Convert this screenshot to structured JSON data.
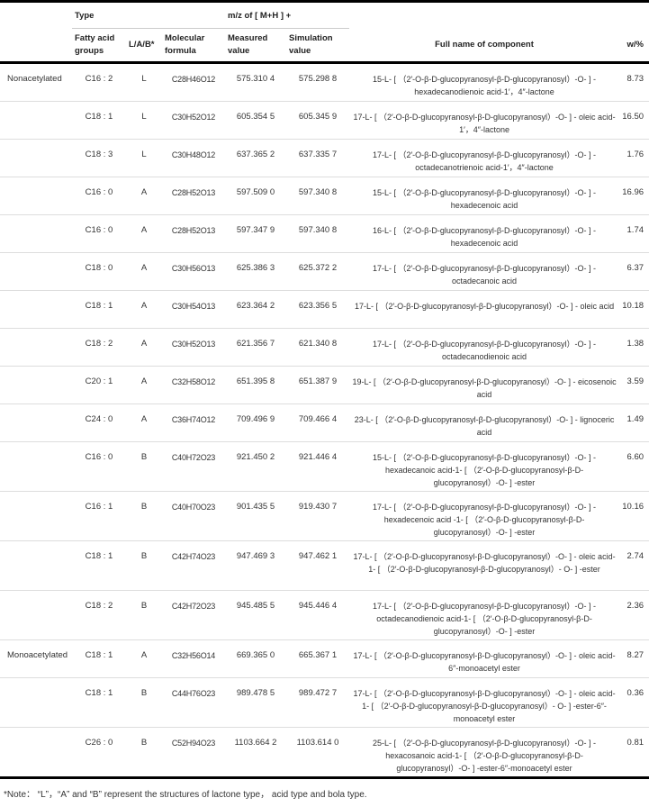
{
  "header": {
    "type": "Type",
    "mz": "m/z of [ M+H ] +",
    "fatty_acid_groups": "Fatty acid groups",
    "lab": "L/A/B*",
    "molecular_formula": "Molecular formula",
    "measured": "Measured value",
    "simulation": "Simulation value",
    "full_name": "Full name of component",
    "w": "w/%"
  },
  "rows": [
    {
      "group": "Nonacetylated",
      "fa": "C16 : 2",
      "lab": "L",
      "formula": "C28H46O12",
      "measured": "575.310 4",
      "sim": "575.298 8",
      "name": "15-L- [ （2′-O-β-D-glucopyranosyl-β-D-glucopyranosyl）-O- ] - hexadecanodienoic acid-1′，4″-lactone",
      "w": "8.73"
    },
    {
      "group": "",
      "fa": "C18 : 1",
      "lab": "L",
      "formula": "C30H52O12",
      "measured": "605.354 5",
      "sim": "605.345 9",
      "name": "17-L- [ （2′-O-β-D-glucopyranosyl-β-D-glucopyranosyl）-O- ] - oleic acid-1′，4″-lactone",
      "w": "16.50"
    },
    {
      "group": "",
      "fa": "C18 : 3",
      "lab": "L",
      "formula": "C30H48O12",
      "measured": "637.365 2",
      "sim": "637.335 7",
      "name": "17-L- [ （2′-O-β-D-glucopyranosyl-β-D-glucopyranosyl）-O- ] - octadecanotrienoic acid-1′，4″-lactone",
      "w": "1.76"
    },
    {
      "group": "",
      "fa": "C16 : 0",
      "lab": "A",
      "formula": "C28H52O13",
      "measured": "597.509 0",
      "sim": "597.340 8",
      "name": "15-L- [ （2′-O-β-D-glucopyranosyl-β-D-glucopyranosyl）-O- ] - hexadecenoic acid",
      "w": "16.96"
    },
    {
      "group": "",
      "fa": "C16 : 0",
      "lab": "A",
      "formula": "C28H52O13",
      "measured": "597.347 9",
      "sim": "597.340 8",
      "name": "16-L- [ （2′-O-β-D-glucopyranosyl-β-D-glucopyranosyl）-O- ] - hexadecenoic acid",
      "w": "1.74"
    },
    {
      "group": "",
      "fa": "C18 : 0",
      "lab": "A",
      "formula": "C30H56O13",
      "measured": "625.386 3",
      "sim": "625.372 2",
      "name": "17-L- [ （2′-O-β-D-glucopyranosyl-β-D-glucopyranosyl）-O- ] - octadecanoic acid",
      "w": "6.37"
    },
    {
      "group": "",
      "fa": "C18 : 1",
      "lab": "A",
      "formula": "C30H54O13",
      "measured": "623.364 2",
      "sim": "623.356 5",
      "name": "17-L- [ （2′-O-β-D-glucopyranosyl-β-D-glucopyranosyl）-O- ] - oleic acid",
      "w": "10.18"
    },
    {
      "group": "",
      "fa": "C18 : 2",
      "lab": "A",
      "formula": "C30H52O13",
      "measured": "621.356 7",
      "sim": "621.340 8",
      "name": "17-L- [ （2′-O-β-D-glucopyranosyl-β-D-glucopyranosyl）-O- ] - octadecanodienoic acid",
      "w": "1.38"
    },
    {
      "group": "",
      "fa": "C20 : 1",
      "lab": "A",
      "formula": "C32H58O12",
      "measured": "651.395 8",
      "sim": "651.387 9",
      "name": "19-L- [ （2′-O-β-D-glucopyranosyl-β-D-glucopyranosyl）-O- ] - eicosenoic acid",
      "w": "3.59"
    },
    {
      "group": "",
      "fa": "C24 : 0",
      "lab": "A",
      "formula": "C36H74O12",
      "measured": "709.496 9",
      "sim": "709.466 4",
      "name": "23-L- [ （2′-O-β-D-glucopyranosyl-β-D-glucopyranosyl）-O- ] - lignoceric acid",
      "w": "1.49"
    },
    {
      "group": "",
      "fa": "C16 : 0",
      "lab": "B",
      "formula": "C40H72O23",
      "measured": "921.450 2",
      "sim": "921.446 4",
      "name": "15-L- [ （2′-O-β-D-glucopyranosyl-β-D-glucopyranosyl）-O- ] - hexadecanoic acid-1- [ （2′-O-β-D-glucopyranosyl-β-D- glucopyranosyl）-O- ] -ester",
      "w": "6.60",
      "tall": true
    },
    {
      "group": "",
      "fa": "C16 : 1",
      "lab": "B",
      "formula": "C40H70O23",
      "measured": "901.435 5",
      "sim": "919.430 7",
      "name": "17-L- [ （2′-O-β-D-glucopyranosyl-β-D-glucopyranosyl）-O- ] - hexadecenoic acid -1- [ （2′-O-β-D-glucopyranosyl-β-D- glucopyranosyl）-O- ] -ester",
      "w": "10.16",
      "tall": true
    },
    {
      "group": "",
      "fa": "C18 : 1",
      "lab": "B",
      "formula": "C42H74O23",
      "measured": "947.469 3",
      "sim": "947.462 1",
      "name": "17-L- [ （2′-O-β-D-glucopyranosyl-β-D-glucopyranosyl）-O- ] - oleic acid-1- [ （2′-O-β-D-glucopyranosyl-β-D-glucopyranosyl）- O- ] -ester",
      "w": "2.74",
      "tall": true
    },
    {
      "group": "",
      "fa": "C18 : 2",
      "lab": "B",
      "formula": "C42H72O23",
      "measured": "945.485 5",
      "sim": "945.446 4",
      "name": "17-L- [ （2′-O-β-D-glucopyranosyl-β-D-glucopyranosyl）-O- ] - octadecanodienoic acid-1- [ （2′-O-β-D-glucopyranosyl-β-D- glucopyranosyl）-O- ] -ester",
      "w": "2.36",
      "tall": true
    },
    {
      "group": "Monoacetylated",
      "fa": "C18 : 1",
      "lab": "A",
      "formula": "C32H56O14",
      "measured": "669.365 0",
      "sim": "665.367 1",
      "name": "17-L- [ （2′-O-β-D-glucopyranosyl-β-D-glucopyranosyl）-O- ] - oleic acid-6″-monoacetyl ester",
      "w": "8.27"
    },
    {
      "group": "",
      "fa": "C18 : 1",
      "lab": "B",
      "formula": "C44H76O23",
      "measured": "989.478 5",
      "sim": "989.472 7",
      "name": "17-L- [ （2′-O-β-D-glucopyranosyl-β-D-glucopyranosyl）-O- ] - oleic acid-1- [ （2′-O-β-D-glucopyranosyl-β-D-glucopyranosyl）- O- ] -ester-6″-monoacetyl ester",
      "w": "0.36",
      "tall": true
    },
    {
      "group": "",
      "fa": "C26 : 0",
      "lab": "B",
      "formula": "C52H94O23",
      "measured": "1103.664 2",
      "sim": "1103.614 0",
      "name": "25-L- [ （2′-O-β-D-glucopyranosyl-β-D-glucopyranosyl）-O- ] - hexacosanoic acid-1- [ （2′-O-β-D-glucopyranosyl-β-D- glucopyranosyl）-O- ] -ester-6″-monoacetyl ester",
      "w": "0.81",
      "tall": true
    }
  ],
  "note": "*Note： “L”，“A” and “B” represent the structures of lactone type， acid type and bola type."
}
